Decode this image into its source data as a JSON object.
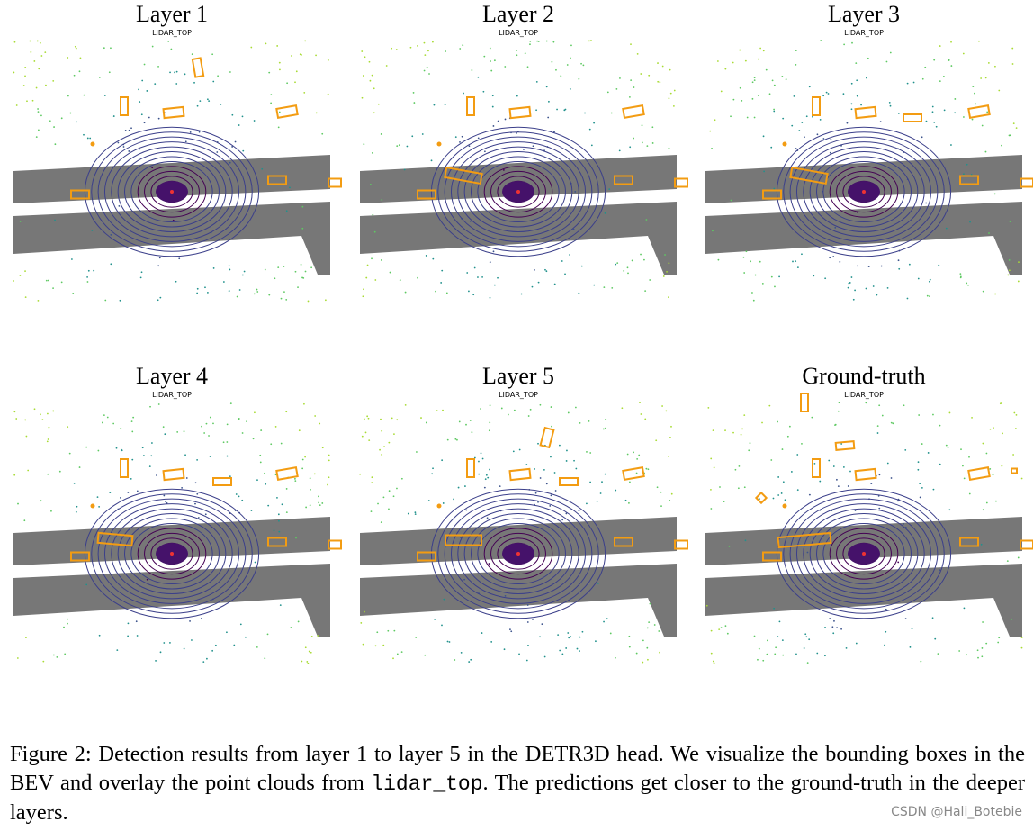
{
  "panels": [
    {
      "title": "Layer 1",
      "subtitle": "LIDAR_TOP"
    },
    {
      "title": "Layer 2",
      "subtitle": "LIDAR_TOP"
    },
    {
      "title": "Layer 3",
      "subtitle": "LIDAR_TOP"
    },
    {
      "title": "Layer 4",
      "subtitle": "LIDAR_TOP"
    },
    {
      "title": "Layer 5",
      "subtitle": "LIDAR_TOP"
    },
    {
      "title": "Ground-truth",
      "subtitle": "LIDAR_TOP"
    }
  ],
  "caption": {
    "before": "Figure 2: Detection results from layer 1 to layer 5 in the DETR3D head. We visualize the bounding boxes in the BEV and overlay the point clouds from",
    "code": "lidar_top",
    "after": ". The predictions get closer to the ground-truth in the deeper layers."
  },
  "watermark": "CSDN @Hali_Botebie"
}
